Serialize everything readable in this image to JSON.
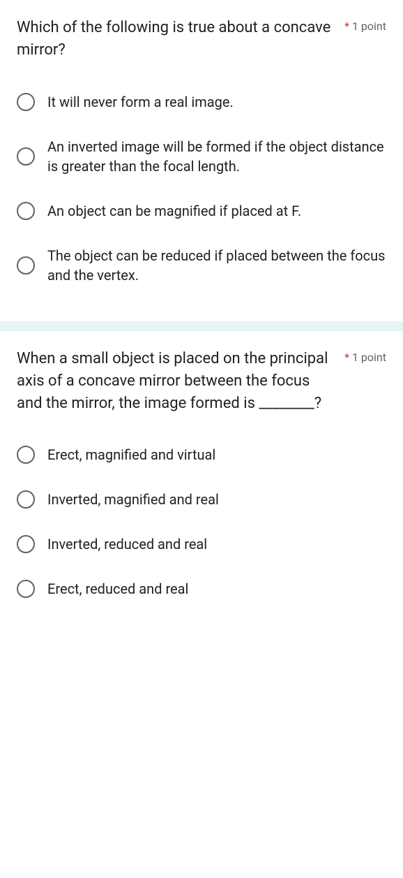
{
  "colors": {
    "text_primary": "#202124",
    "text_secondary": "#5f6368",
    "required": "#d93025",
    "separator_bg": "#e6f4f4",
    "radio_border": "#5f6368",
    "card_bg": "#ffffff"
  },
  "typography": {
    "question_fontsize": 22,
    "option_fontsize": 20,
    "points_fontsize": 16
  },
  "question1": {
    "text": "Which of the following is true about a concave mirror?",
    "required_mark": "*",
    "points": "1 point",
    "options": [
      "It will never form a real image.",
      "An inverted image will be formed if the object distance is greater than the focal length.",
      "An object can be magnified if placed at F.",
      "The object can be reduced if placed between the focus and the vertex."
    ]
  },
  "question2": {
    "text": "When a small object is placed on the principal axis of a concave mirror between the focus and the mirror, the image formed is ________?",
    "required_mark": "*",
    "points": "1 point",
    "options": [
      "Erect, magnified and virtual",
      "Inverted, magnified and real",
      "Inverted, reduced and real",
      "Erect, reduced and real"
    ]
  }
}
